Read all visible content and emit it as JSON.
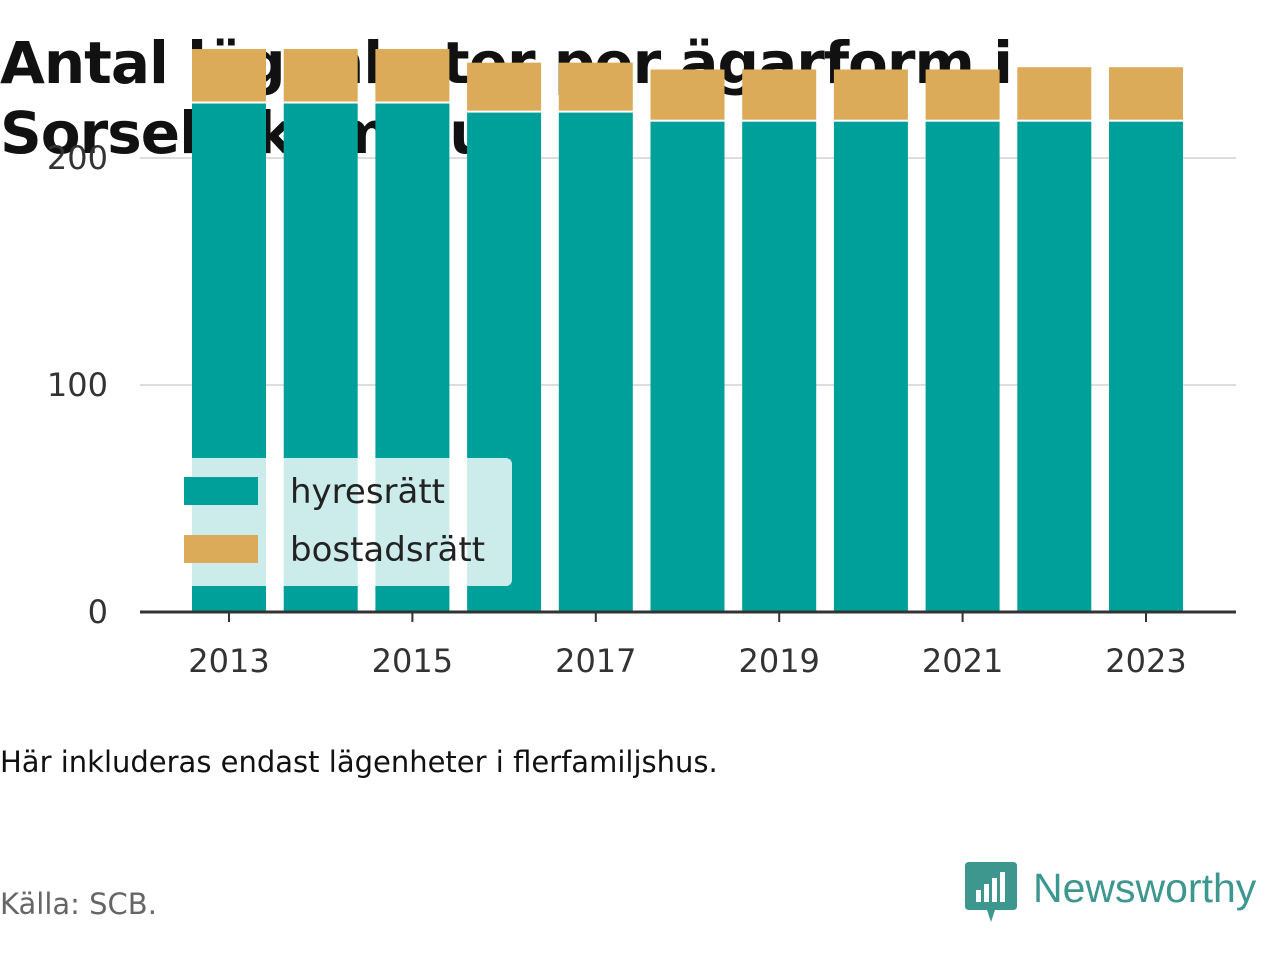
{
  "title": "Antal lägenheter per ägarform i Sorsele kommun",
  "note": "Här inkluderas endast lägenheter i flerfamiljshus.",
  "source": "Källa: SCB.",
  "brand": {
    "name": "Newsworthy",
    "icon": "newsworthy-logo-icon",
    "color": "#3d978f"
  },
  "chart_data": {
    "type": "bar",
    "stacked": true,
    "categories": [
      "2013",
      "2014",
      "2015",
      "2016",
      "2017",
      "2018",
      "2019",
      "2020",
      "2021",
      "2022",
      "2023"
    ],
    "series": [
      {
        "name": "hyresrätt",
        "color": "#00a09a",
        "values": [
          224,
          224,
          224,
          220,
          220,
          216,
          216,
          216,
          216,
          216,
          216
        ]
      },
      {
        "name": "bostadsrätt",
        "color": "#dbab59",
        "values": [
          24,
          24,
          24,
          22,
          22,
          23,
          23,
          23,
          23,
          24,
          24
        ]
      }
    ],
    "x_tick_labels": [
      "2013",
      "2015",
      "2017",
      "2019",
      "2021",
      "2023"
    ],
    "y_ticks": [
      0,
      100,
      200
    ],
    "ylim": [
      0,
      250
    ],
    "grid": true,
    "legend_position": "bottom-left"
  }
}
